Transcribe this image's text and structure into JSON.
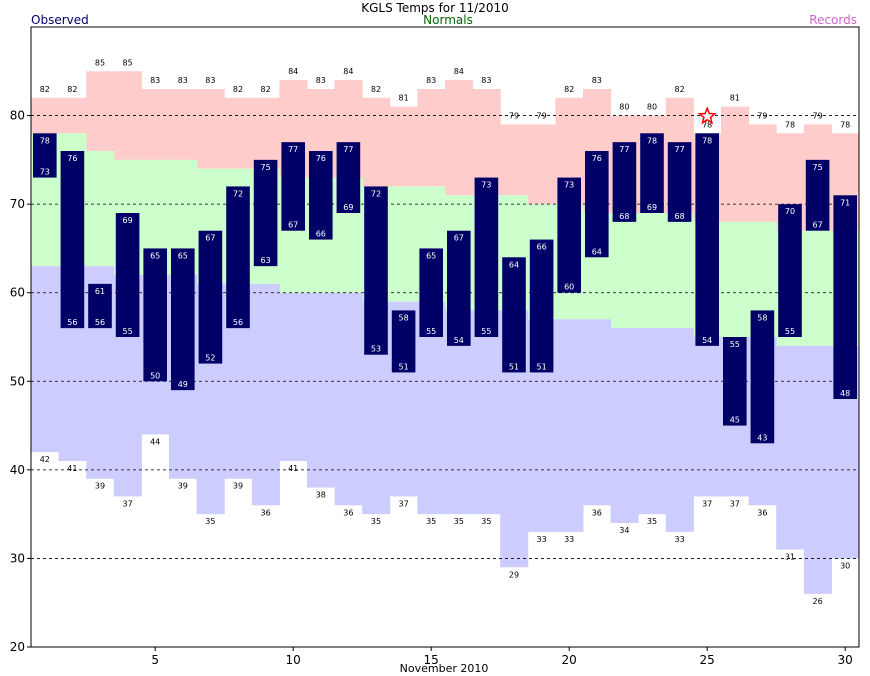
{
  "chart_data": {
    "type": "bar",
    "title": "KGLS Temps for 11/2010",
    "xlabel": "November 2010",
    "ylabel": "",
    "legend": {
      "observed": "Observed",
      "normals": "Normals",
      "records": "Records"
    },
    "xlim": [
      1,
      30
    ],
    "ylim": [
      20,
      90
    ],
    "xticks": [
      5,
      10,
      15,
      20,
      25,
      30
    ],
    "yticks": [
      20,
      30,
      40,
      50,
      60,
      70,
      80
    ],
    "grid": true,
    "days": [
      1,
      2,
      3,
      4,
      5,
      6,
      7,
      8,
      9,
      10,
      11,
      12,
      13,
      14,
      15,
      16,
      17,
      18,
      19,
      20,
      21,
      22,
      23,
      24,
      25,
      26,
      27,
      28,
      29,
      30
    ],
    "series": [
      {
        "name": "Records",
        "values_high": [
          82,
          82,
          85,
          85,
          83,
          83,
          83,
          82,
          82,
          84,
          83,
          84,
          82,
          81,
          83,
          84,
          83,
          79,
          79,
          82,
          83,
          80,
          80,
          82,
          78,
          81,
          79,
          78,
          79,
          78
        ],
        "values_low": [
          42,
          41,
          39,
          37,
          44,
          39,
          35,
          39,
          36,
          41,
          38,
          36,
          35,
          37,
          35,
          35,
          35,
          29,
          33,
          33,
          36,
          34,
          35,
          33,
          37,
          37,
          36,
          31,
          26,
          30
        ]
      },
      {
        "name": "Normals",
        "values_high": [
          78,
          78,
          76,
          75,
          75,
          75,
          74,
          74,
          74,
          73,
          73,
          73,
          72,
          72,
          72,
          71,
          71,
          71,
          70,
          70,
          69,
          69,
          69,
          69,
          68,
          68,
          68,
          67,
          67,
          67
        ],
        "values_low": [
          63,
          63,
          63,
          62,
          62,
          62,
          61,
          61,
          61,
          60,
          60,
          60,
          59,
          59,
          59,
          58,
          58,
          58,
          57,
          57,
          57,
          56,
          56,
          56,
          55,
          55,
          55,
          54,
          54,
          54
        ]
      },
      {
        "name": "Observed",
        "values_high": [
          78,
          76,
          61,
          69,
          65,
          65,
          67,
          72,
          75,
          77,
          76,
          77,
          72,
          58,
          65,
          67,
          73,
          64,
          66,
          73,
          76,
          77,
          78,
          77,
          78,
          55,
          58,
          70,
          75,
          71
        ],
        "values_low": [
          73,
          56,
          56,
          55,
          50,
          49,
          52,
          56,
          63,
          67,
          66,
          69,
          53,
          51,
          55,
          54,
          55,
          51,
          51,
          60,
          64,
          68,
          69,
          68,
          54,
          45,
          43,
          55,
          67,
          48
        ]
      }
    ],
    "record_day": 25,
    "colors": {
      "observed": "#000066",
      "normals": "#ccffcc",
      "records_high": "#ffcccc",
      "records_low": "#ccccff",
      "legend_observed": "#000066",
      "legend_normals": "#006600",
      "legend_records": "#cc66cc",
      "star": "#ff0000"
    }
  }
}
